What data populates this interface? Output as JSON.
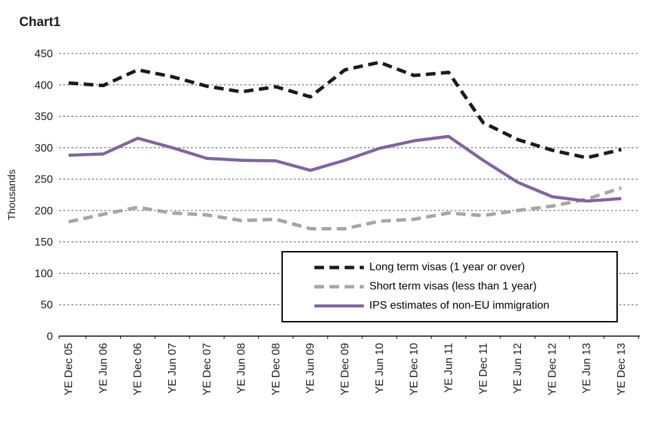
{
  "title": "Chart1",
  "chart_data": {
    "type": "line",
    "title": "Chart1",
    "xlabel": "",
    "ylabel": "Thousands",
    "ylim": [
      0,
      450
    ],
    "ytick_step": 50,
    "grid": true,
    "legend_position": "inside-bottom-right",
    "categories": [
      "YE Dec 05",
      "YE Jun 06",
      "YE Dec 06",
      "YE Jun 07",
      "YE Dec 07",
      "YE Jun 08",
      "YE Dec 08",
      "YE Jun 09",
      "YE Dec 09",
      "YE Jun 10",
      "YE Dec 10",
      "YE Jun 11",
      "YE Dec 11",
      "YE Jun 12",
      "YE Dec 12",
      "YE Jun 13",
      "YE Dec 13"
    ],
    "series": [
      {
        "name": "Long term visas (1 year or over)",
        "color": "#1a1a1a",
        "style": "dashed",
        "values": [
          403,
          399,
          424,
          413,
          398,
          389,
          397,
          381,
          424,
          436,
          415,
          420,
          340,
          313,
          296,
          284,
          297
        ]
      },
      {
        "name": "Short term visas (less than 1 year)",
        "color": "#a6a6a6",
        "style": "dashed",
        "values": [
          182,
          194,
          205,
          196,
          193,
          184,
          186,
          171,
          171,
          183,
          186,
          196,
          192,
          200,
          207,
          218,
          236
        ]
      },
      {
        "name": "IPS estimates of non-EU immigration",
        "color": "#8064a2",
        "style": "solid",
        "values": [
          288,
          290,
          315,
          300,
          283,
          280,
          279,
          264,
          280,
          299,
          311,
          318,
          280,
          245,
          222,
          215,
          219
        ]
      }
    ]
  }
}
